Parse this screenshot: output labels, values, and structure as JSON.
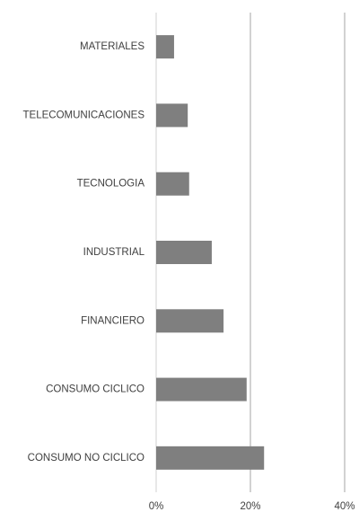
{
  "chart_data": {
    "type": "bar",
    "orientation": "horizontal",
    "categories": [
      "MATERIALES",
      "TELECOMUNICACIONES",
      "TECNOLOGIA",
      "INDUSTRIAL",
      "FINANCIERO",
      "CONSUMO CICLICO",
      "CONSUMO NO CICLICO"
    ],
    "values": [
      3.8,
      6.7,
      7.0,
      11.8,
      14.3,
      19.2,
      22.9
    ],
    "color": "#7f7f7f",
    "xlim": [
      0,
      40
    ],
    "xticks": [
      {
        "value": 0,
        "label": "0%"
      },
      {
        "value": 20,
        "label": "20%"
      },
      {
        "value": 40,
        "label": "40%"
      }
    ],
    "grid": true
  }
}
